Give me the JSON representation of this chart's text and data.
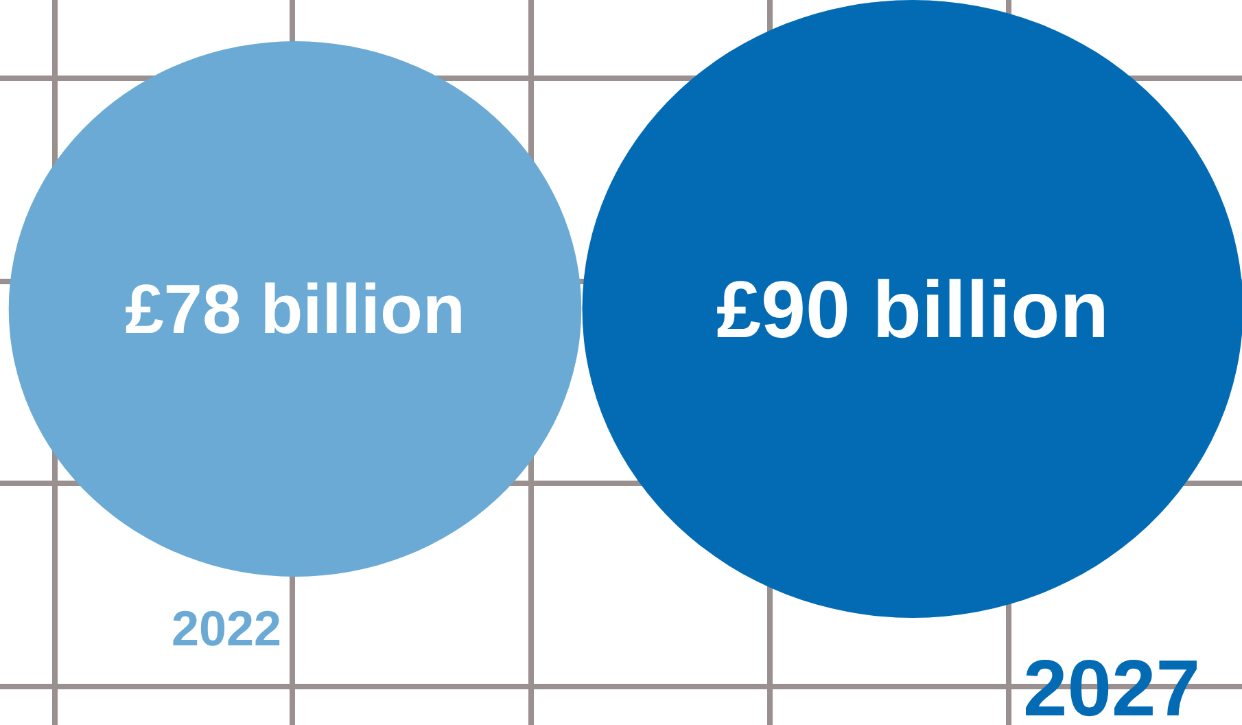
{
  "chart_data": {
    "type": "other",
    "categories": [
      "2022",
      "2027"
    ],
    "values": [
      78,
      90
    ],
    "value_labels": [
      "£78 billion",
      "£90 billion"
    ],
    "colors": [
      "#6aaad4",
      "#036ab4"
    ]
  }
}
